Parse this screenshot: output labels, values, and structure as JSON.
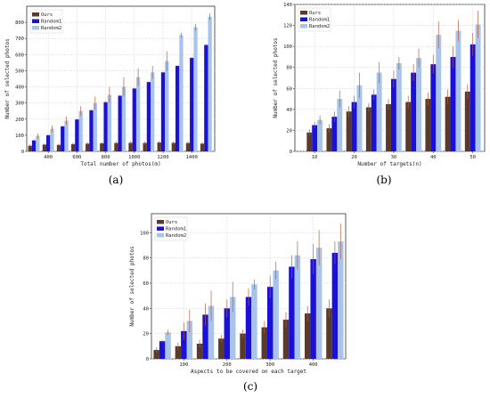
{
  "captions": [
    "(a)",
    "(b)",
    "(c)"
  ],
  "chart_data": [
    {
      "type": "bar",
      "panel": "(a)",
      "xlabel": "Total number of photos(m)",
      "ylabel": "Number of selected photos",
      "x": [
        300,
        400,
        500,
        600,
        700,
        800,
        900,
        1000,
        1100,
        1200,
        1300,
        1400,
        1500
      ],
      "xticks": [
        "400",
        "600",
        "800",
        "1000",
        "1200",
        "1400"
      ],
      "xtick_values": [
        400,
        600,
        800,
        1000,
        1200,
        1400
      ],
      "yticks": [
        "0",
        "100",
        "200",
        "300",
        "400",
        "500",
        "600",
        "700",
        "800"
      ],
      "ylim": [
        0,
        900
      ],
      "grid": true,
      "legend_position": "top-left",
      "series": [
        {
          "name": "Ours",
          "color": "#5a3a2a",
          "values": [
            35,
            42,
            40,
            45,
            48,
            50,
            52,
            53,
            52,
            55,
            53,
            52,
            48
          ],
          "errors": [
            8,
            8,
            8,
            9,
            9,
            9,
            10,
            10,
            10,
            10,
            10,
            10,
            10
          ]
        },
        {
          "name": "Random1",
          "color": "#1a10d8",
          "values": [
            68,
            100,
            155,
            198,
            255,
            305,
            345,
            390,
            430,
            490,
            530,
            580,
            660
          ],
          "errors": [
            5,
            5,
            5,
            5,
            5,
            5,
            5,
            5,
            5,
            5,
            5,
            5,
            5
          ]
        },
        {
          "name": "Random2",
          "color": "#a9c4ea",
          "values": [
            95,
            140,
            190,
            250,
            300,
            350,
            400,
            460,
            490,
            560,
            720,
            770,
            835
          ],
          "errors": [
            15,
            20,
            25,
            30,
            40,
            50,
            60,
            55,
            40,
            60,
            15,
            20,
            20
          ]
        }
      ]
    },
    {
      "type": "bar",
      "panel": "(b)",
      "xlabel": "Number of targets(n)",
      "ylabel": "Number of selected photos",
      "x": [
        10,
        15,
        20,
        25,
        30,
        35,
        40,
        45,
        50
      ],
      "xticks": [
        "10",
        "20",
        "30",
        "40",
        "50"
      ],
      "xtick_values": [
        10,
        20,
        30,
        40,
        50
      ],
      "yticks": [
        "0",
        "20",
        "40",
        "60",
        "80",
        "100",
        "120",
        "140"
      ],
      "ylim": [
        0,
        140
      ],
      "grid": true,
      "legend_position": "top-left",
      "series": [
        {
          "name": "Ours",
          "color": "#5a3a2a",
          "values": [
            18,
            22,
            38,
            42,
            45,
            47,
            50,
            52,
            57
          ],
          "errors": [
            3,
            4,
            5,
            4,
            5,
            6,
            6,
            7,
            7
          ]
        },
        {
          "name": "Random1",
          "color": "#1a10d8",
          "values": [
            25,
            33,
            47,
            54,
            69,
            75,
            83,
            90,
            102
          ],
          "errors": [
            3,
            5,
            6,
            5,
            8,
            8,
            9,
            10,
            11
          ]
        },
        {
          "name": "Random2",
          "color": "#a9c4ea",
          "values": [
            30,
            50,
            63,
            75,
            84,
            89,
            111,
            115,
            121
          ],
          "errors": [
            4,
            8,
            12,
            10,
            6,
            9,
            13,
            10,
            13
          ]
        }
      ]
    },
    {
      "type": "bar",
      "panel": "(c)",
      "xlabel": "Aspects to be covered on each target",
      "ylabel": "Number of selected photos",
      "x": [
        50,
        100,
        150,
        200,
        250,
        300,
        350,
        400,
        450
      ],
      "xticks": [
        "100",
        "200",
        "300",
        "400"
      ],
      "xtick_values": [
        100,
        200,
        300,
        400
      ],
      "yticks": [
        "0",
        "20",
        "40",
        "60",
        "80",
        "100"
      ],
      "ylim": [
        0,
        115
      ],
      "grid": true,
      "legend_position": "top-left",
      "series": [
        {
          "name": "Ours",
          "color": "#5a3a2a",
          "values": [
            7,
            10,
            12,
            16,
            20,
            25,
            31,
            36,
            40
          ],
          "errors": [
            2,
            3,
            3,
            3,
            3,
            5,
            6,
            6,
            7
          ]
        },
        {
          "name": "Random1",
          "color": "#1a10d8",
          "values": [
            14,
            22,
            35,
            40,
            49,
            57,
            73,
            79,
            84
          ],
          "errors": [
            1,
            7,
            9,
            7,
            7,
            9,
            9,
            12,
            9
          ]
        },
        {
          "name": "Random2",
          "color": "#a9c4ea",
          "values": [
            21,
            30,
            42,
            49,
            59,
            70,
            82,
            88,
            93
          ],
          "errors": [
            2,
            9,
            12,
            12,
            4,
            7,
            11,
            14,
            14
          ]
        }
      ]
    }
  ]
}
